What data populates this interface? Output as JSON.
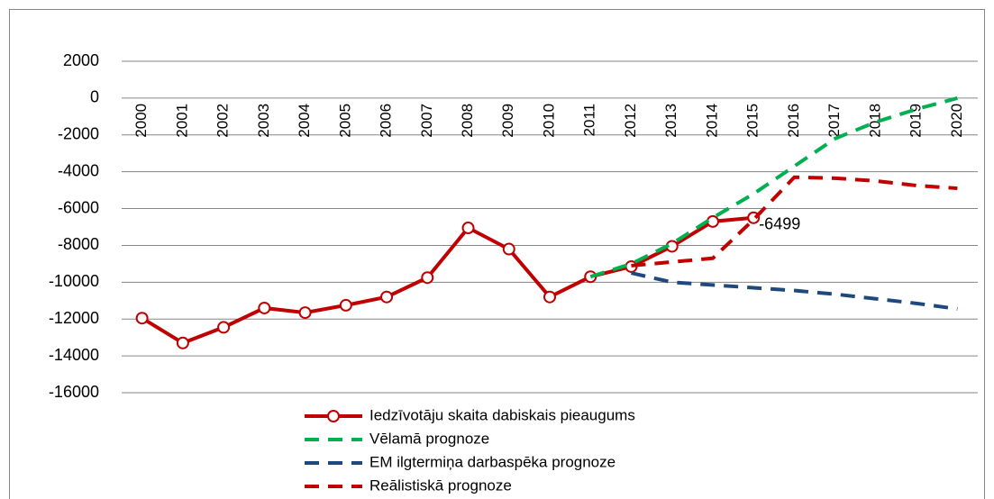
{
  "chart_data": {
    "type": "line",
    "categories": [
      "2000",
      "2001",
      "2002",
      "2003",
      "2004",
      "2005",
      "2006",
      "2007",
      "2008",
      "2009",
      "2010",
      "2011",
      "2012",
      "2013",
      "2014",
      "2015",
      "2016",
      "2017",
      "2018",
      "2019",
      "2020"
    ],
    "series": [
      {
        "name": "Iedzīvotāju skaita dabiskais pieaugums",
        "color": "#c00000",
        "style": "solid",
        "marker": "circle",
        "values": [
          -11950,
          -13300,
          -12450,
          -11400,
          -11650,
          -11250,
          -10800,
          -9750,
          -7050,
          -8200,
          -10800,
          -9700,
          -9150,
          -8050,
          -6700,
          -6499,
          null,
          null,
          null,
          null,
          null
        ]
      },
      {
        "name": "Vēlamā prognoze",
        "color": "#00b050",
        "style": "dashed",
        "values": [
          null,
          null,
          null,
          null,
          null,
          null,
          null,
          null,
          null,
          null,
          null,
          -9700,
          -9000,
          -7900,
          -6500,
          -5200,
          -3700,
          -2200,
          -1300,
          -600,
          0
        ]
      },
      {
        "name": "EM ilgtermiņa darbaspēka prognoze",
        "color": "#1f497d",
        "style": "dashed",
        "values": [
          null,
          null,
          null,
          null,
          null,
          null,
          null,
          null,
          null,
          null,
          null,
          null,
          -9500,
          -10000,
          -10150,
          -10300,
          -10450,
          -10650,
          -10900,
          -11150,
          -11450
        ]
      },
      {
        "name": "Reālistiskā prognoze",
        "color": "#c00000",
        "style": "dashed",
        "values": [
          null,
          null,
          null,
          null,
          null,
          null,
          null,
          null,
          null,
          null,
          null,
          null,
          -9100,
          -8900,
          -8700,
          -6600,
          -4300,
          -4350,
          -4500,
          -4750,
          -4900
        ]
      }
    ],
    "ylim": [
      -16000,
      2000
    ],
    "yticks": [
      2000,
      0,
      -2000,
      -4000,
      -6000,
      -8000,
      -10000,
      -12000,
      -14000,
      -16000
    ],
    "grid": true,
    "data_label_index": 15
  }
}
